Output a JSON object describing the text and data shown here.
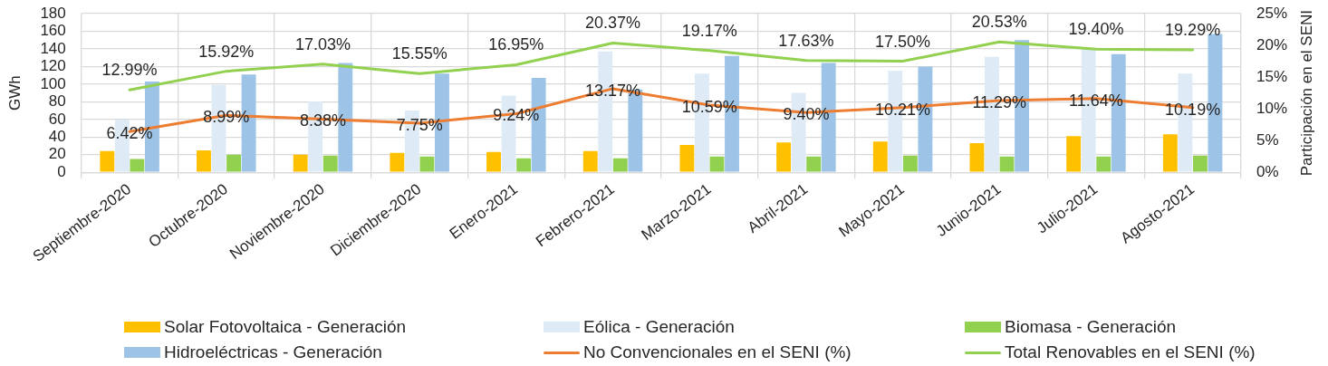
{
  "chart_data": {
    "type": "bar",
    "categories": [
      "Septiembre-2020",
      "Octubre-2020",
      "Noviembre-2020",
      "Diciembre-2020",
      "Enero-2021",
      "Febrero-2021",
      "Marzo-2021",
      "Abril-2021",
      "Mayo-2021",
      "Junio-2021",
      "Julio-2021",
      "Agosto-2021"
    ],
    "ylabel": "GWh",
    "y2label": "Participación en el SENI",
    "ylim": [
      0,
      180
    ],
    "yticks": [
      0,
      20,
      40,
      60,
      80,
      100,
      120,
      140,
      160,
      180
    ],
    "y2lim": [
      0,
      25
    ],
    "y2ticks": [
      {
        "value": 0,
        "label": "0%"
      },
      {
        "value": 5,
        "label": "5%"
      },
      {
        "value": 10,
        "label": "10%"
      },
      {
        "value": 15,
        "label": "15%"
      },
      {
        "value": 20,
        "label": "20%"
      },
      {
        "value": 25,
        "label": "25%"
      }
    ],
    "grid": true,
    "legend": "bottom",
    "series": [
      {
        "name": "Solar Fotovoltaica - Generación",
        "color": "#ffc000",
        "values": [
          24,
          25,
          20,
          22,
          23,
          24,
          31,
          34,
          35,
          33,
          41,
          43
        ]
      },
      {
        "name": "Eólica - Generación",
        "color": "#deebf7",
        "values": [
          60,
          99,
          80,
          70,
          87,
          137,
          112,
          90,
          115,
          131,
          141,
          112
        ]
      },
      {
        "name": "Biomasa - Generación",
        "color": "#92d050",
        "values": [
          15,
          20,
          19,
          18,
          16,
          16,
          18,
          18,
          19,
          18,
          18,
          19
        ]
      },
      {
        "name": "Hidroeléctricas - Generación",
        "color": "#9dc3e6",
        "values": [
          103,
          111,
          124,
          112,
          107,
          94,
          132,
          124,
          120,
          150,
          134,
          157
        ]
      },
      {
        "name": "No Convencionales en el SENI (%)",
        "type": "line",
        "axis": "y2",
        "color": "#ed7d31",
        "values": [
          6.42,
          8.99,
          8.38,
          7.75,
          9.24,
          13.17,
          10.59,
          9.4,
          10.21,
          11.29,
          11.64,
          10.19
        ],
        "value_labels": [
          "6.42%",
          "8.99%",
          "8.38%",
          "7.75%",
          "9.24%",
          "13.17%",
          "10.59%",
          "9.40%",
          "10.21%",
          "11.29%",
          "11.64%",
          "10.19%"
        ]
      },
      {
        "name": "Total Renovables en el SENI (%)",
        "type": "line",
        "axis": "y2",
        "color": "#92d050",
        "values": [
          12.99,
          15.92,
          17.03,
          15.55,
          16.95,
          20.37,
          19.17,
          17.63,
          17.5,
          20.53,
          19.4,
          19.29
        ],
        "value_labels": [
          "12.99%",
          "15.92%",
          "17.03%",
          "15.55%",
          "16.95%",
          "20.37%",
          "19.17%",
          "17.63%",
          "17.50%",
          "20.53%",
          "19.40%",
          "19.29%"
        ]
      }
    ]
  }
}
